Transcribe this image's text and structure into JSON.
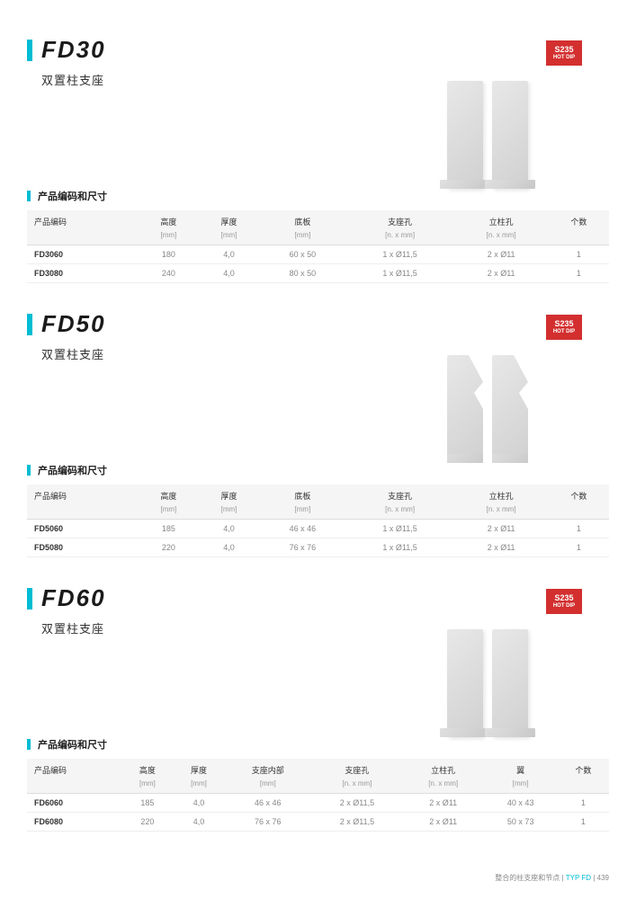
{
  "badge": {
    "top": "S235",
    "bottom": "HOT DIP"
  },
  "sections": [
    {
      "title": "FD30",
      "subtitle": "双置柱支座",
      "table_title": "产品编码和尺寸",
      "columns": [
        "产品编码",
        "高度",
        "厚度",
        "底板",
        "支座孔",
        "立柱孔",
        "个数"
      ],
      "units": [
        "",
        "[mm]",
        "[mm]",
        "[mm]",
        "[n. x mm]",
        "[n. x mm]",
        ""
      ],
      "rows": [
        [
          "FD3060",
          "180",
          "4,0",
          "60 x 50",
          "1 x Ø11,5",
          "2 x Ø11",
          "1"
        ],
        [
          "FD3080",
          "240",
          "4,0",
          "80 x 50",
          "1 x Ø11,5",
          "2 x Ø11",
          "1"
        ]
      ],
      "bracket_type": "straight"
    },
    {
      "title": "FD50",
      "subtitle": "双置柱支座",
      "table_title": "产品编码和尺寸",
      "columns": [
        "产品编码",
        "高度",
        "厚度",
        "底板",
        "支座孔",
        "立柱孔",
        "个数"
      ],
      "units": [
        "",
        "[mm]",
        "[mm]",
        "[mm]",
        "[n. x mm]",
        "[n. x mm]",
        ""
      ],
      "rows": [
        [
          "FD5060",
          "185",
          "4,0",
          "46 x 46",
          "1 x Ø11,5",
          "2 x Ø11",
          "1"
        ],
        [
          "FD5080",
          "220",
          "4,0",
          "76 x 76",
          "1 x Ø11,5",
          "2 x Ø11",
          "1"
        ]
      ],
      "bracket_type": "curve"
    },
    {
      "title": "FD60",
      "subtitle": "双置柱支座",
      "table_title": "产品编码和尺寸",
      "columns": [
        "产品编码",
        "高度",
        "厚度",
        "支座内部",
        "支座孔",
        "立柱孔",
        "翼",
        "个数"
      ],
      "units": [
        "",
        "[mm]",
        "[mm]",
        "[mm]",
        "[n. x mm]",
        "[n. x mm]",
        "[mm]",
        ""
      ],
      "rows": [
        [
          "FD6060",
          "185",
          "4,0",
          "46 x 46",
          "2 x Ø11,5",
          "2 x Ø11",
          "40 x 43",
          "1"
        ],
        [
          "FD6080",
          "220",
          "4,0",
          "76 x 76",
          "2 x Ø11,5",
          "2 x Ø11",
          "50 x 73",
          "1"
        ]
      ],
      "bracket_type": "straight"
    }
  ],
  "footer": {
    "left": "整合的柱支座和节点",
    "mid": "TYP FD",
    "page": "439"
  },
  "colors": {
    "accent": "#00bcd4",
    "badge": "#d32f2f"
  }
}
